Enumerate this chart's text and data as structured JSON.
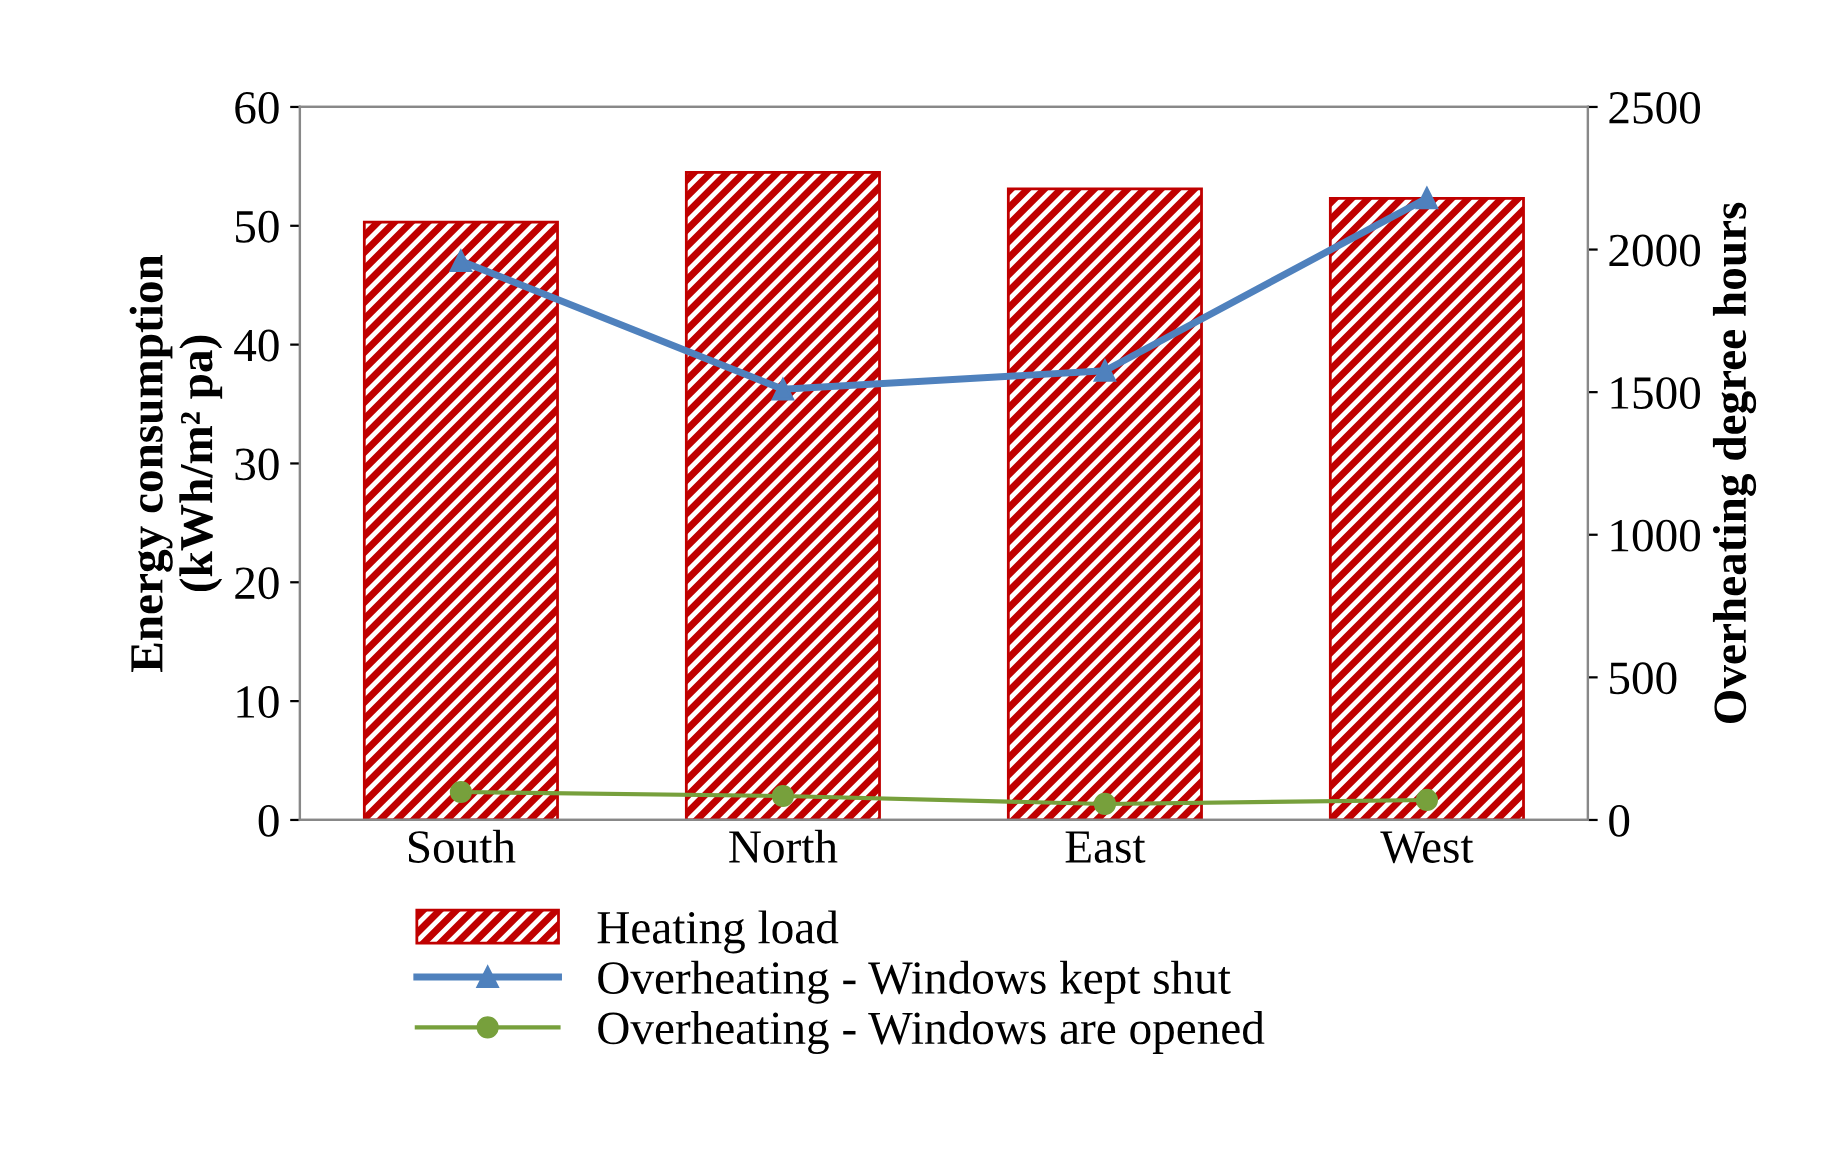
{
  "chart_data": {
    "type": "bar",
    "categories": [
      "South",
      "North",
      "East",
      "West"
    ],
    "ylabel": "Energy consumption\n(kWh/m² pa)",
    "y2label": "Overheating degree hours",
    "ylim": [
      0,
      60
    ],
    "yticks": [
      0,
      10,
      20,
      30,
      40,
      50,
      60
    ],
    "y2lim": [
      0,
      2500
    ],
    "y2ticks": [
      0,
      500,
      1000,
      1500,
      2000,
      2500
    ],
    "grid": false,
    "legend": "bottom",
    "series": [
      {
        "name": "Heating load",
        "color": "#c00000",
        "values": [
          50.3,
          54.5,
          53.1,
          52.3
        ]
      },
      {
        "name": "Overheating - Windows kept shut",
        "type": "line",
        "axis": "y2",
        "color": "#4f81bd",
        "marker": "triangle",
        "values": [
          1960,
          1510,
          1575,
          2180
        ]
      },
      {
        "name": "Overheating - Windows are opened",
        "type": "line",
        "axis": "y2",
        "color": "#77a03c",
        "marker": "circle",
        "values": [
          98,
          84,
          56,
          70
        ]
      }
    ]
  }
}
